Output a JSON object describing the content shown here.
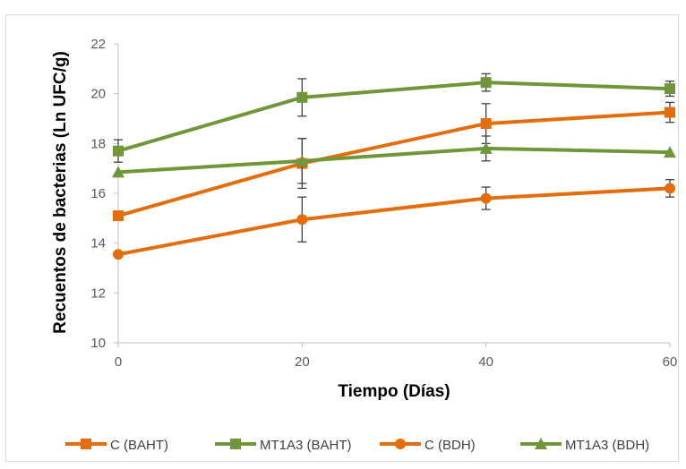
{
  "chart_data": {
    "type": "line",
    "x": [
      0,
      20,
      40,
      60
    ],
    "xlabel": "Tiempo (Días)",
    "ylabel": "Recuentos de bacterias  (Ln UFC/g)",
    "xlim": [
      0,
      60
    ],
    "ylim": [
      10,
      22
    ],
    "xticks": [
      0,
      20,
      40,
      60
    ],
    "yticks": [
      10,
      12,
      14,
      16,
      18,
      20,
      22
    ],
    "grid": false,
    "legend_position": "bottom",
    "series": [
      {
        "name": "C (BAHT)",
        "color": "#e46c0a",
        "marker": "square",
        "values": [
          15.1,
          17.2,
          18.8,
          19.25
        ],
        "errors": [
          0,
          1.0,
          0.8,
          0.4
        ]
      },
      {
        "name": "MT1A3 (BAHT)",
        "color": "#70963a",
        "marker": "square",
        "values": [
          17.7,
          19.85,
          20.45,
          20.2
        ],
        "errors": [
          0.45,
          0.75,
          0.35,
          0.3
        ]
      },
      {
        "name": "C (BDH)",
        "color": "#e46c0a",
        "marker": "circle",
        "values": [
          13.55,
          14.95,
          15.8,
          16.2
        ],
        "errors": [
          0,
          0.9,
          0.45,
          0.35
        ]
      },
      {
        "name": "MT1A3 (BDH)",
        "color": "#70963a",
        "marker": "triangle",
        "values": [
          16.85,
          17.3,
          17.8,
          17.65
        ],
        "errors": [
          0,
          0.9,
          0.5,
          0
        ]
      }
    ]
  }
}
